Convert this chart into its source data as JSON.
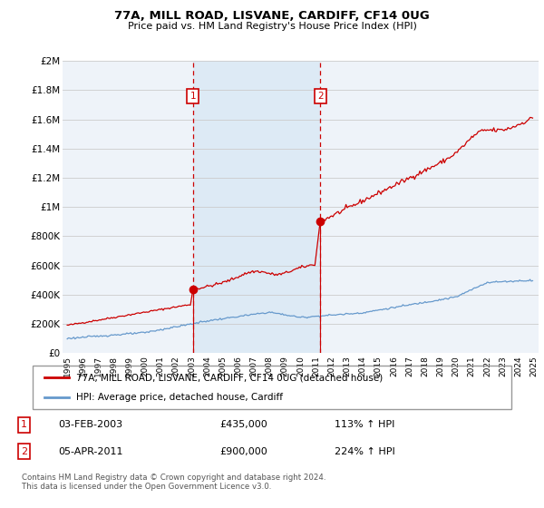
{
  "title": "77A, MILL ROAD, LISVANE, CARDIFF, CF14 0UG",
  "subtitle": "Price paid vs. HM Land Registry's House Price Index (HPI)",
  "background_color": "#ffffff",
  "plot_bg_color": "#eef3f9",
  "highlight_color": "#ddeaf5",
  "grid_color": "#cccccc",
  "ylim": [
    0,
    2000000
  ],
  "yticks": [
    0,
    200000,
    400000,
    600000,
    800000,
    1000000,
    1200000,
    1400000,
    1600000,
    1800000,
    2000000
  ],
  "ytick_labels": [
    "£0",
    "£200K",
    "£400K",
    "£600K",
    "£800K",
    "£1M",
    "£1.2M",
    "£1.4M",
    "£1.6M",
    "£1.8M",
    "£2M"
  ],
  "xlim_start": 1994.7,
  "xlim_end": 2025.3,
  "red_line_color": "#cc0000",
  "blue_line_color": "#6699cc",
  "marker1_x": 2003.08,
  "marker1_y": 435000,
  "marker2_x": 2011.26,
  "marker2_y": 900000,
  "vline_color": "#cc0000",
  "vline_style": "--",
  "legend_label_red": "77A, MILL ROAD, LISVANE, CARDIFF, CF14 0UG (detached house)",
  "legend_label_blue": "HPI: Average price, detached house, Cardiff",
  "table_row1": [
    "1",
    "03-FEB-2003",
    "£435,000",
    "113% ↑ HPI"
  ],
  "table_row2": [
    "2",
    "05-APR-2011",
    "£900,000",
    "224% ↑ HPI"
  ],
  "footer": "Contains HM Land Registry data © Crown copyright and database right 2024.\nThis data is licensed under the Open Government Licence v3.0.",
  "red_x": [
    1995.0,
    1995.08,
    1995.17,
    1995.25,
    1995.33,
    1995.42,
    1995.5,
    1995.58,
    1995.67,
    1995.75,
    1995.83,
    1995.92,
    1996.0,
    1996.08,
    1996.17,
    1996.25,
    1996.33,
    1996.42,
    1996.5,
    1996.58,
    1996.67,
    1996.75,
    1996.83,
    1996.92,
    1997.0,
    1997.08,
    1997.17,
    1997.25,
    1997.33,
    1997.42,
    1997.5,
    1997.58,
    1997.67,
    1997.75,
    1997.83,
    1997.92,
    1998.0,
    1998.08,
    1998.17,
    1998.25,
    1998.33,
    1998.42,
    1998.5,
    1998.58,
    1998.67,
    1998.75,
    1998.83,
    1998.92,
    1999.0,
    1999.08,
    1999.17,
    1999.25,
    1999.33,
    1999.42,
    1999.5,
    1999.58,
    1999.67,
    1999.75,
    1999.83,
    1999.92,
    2000.0,
    2000.08,
    2000.17,
    2000.25,
    2000.33,
    2000.42,
    2000.5,
    2000.58,
    2000.67,
    2000.75,
    2000.83,
    2000.92,
    2001.0,
    2001.08,
    2001.17,
    2001.25,
    2001.33,
    2001.42,
    2001.5,
    2001.58,
    2001.67,
    2001.75,
    2001.83,
    2001.92,
    2002.0,
    2002.08,
    2002.17,
    2002.25,
    2002.33,
    2002.42,
    2002.5,
    2002.58,
    2002.67,
    2002.75,
    2002.83,
    2002.92,
    2003.08,
    2003.17,
    2003.25,
    2003.33,
    2003.42,
    2003.5,
    2003.58,
    2003.67,
    2003.75,
    2003.83,
    2003.92,
    2004.0,
    2004.08,
    2004.17,
    2004.25,
    2004.33,
    2004.42,
    2004.5,
    2004.58,
    2004.67,
    2004.75,
    2004.83,
    2004.92,
    2005.0,
    2005.08,
    2005.17,
    2005.25,
    2005.33,
    2005.42,
    2005.5,
    2005.58,
    2005.67,
    2005.75,
    2005.83,
    2005.92,
    2006.0,
    2006.08,
    2006.17,
    2006.25,
    2006.33,
    2006.42,
    2006.5,
    2006.58,
    2006.67,
    2006.75,
    2006.83,
    2006.92,
    2007.0,
    2007.08,
    2007.17,
    2007.25,
    2007.33,
    2007.42,
    2007.5,
    2007.58,
    2007.67,
    2007.75,
    2007.83,
    2007.92,
    2008.0,
    2008.08,
    2008.17,
    2008.25,
    2008.33,
    2008.42,
    2008.5,
    2008.58,
    2008.67,
    2008.75,
    2008.83,
    2008.92,
    2009.0,
    2009.08,
    2009.17,
    2009.25,
    2009.33,
    2009.42,
    2009.5,
    2009.58,
    2009.67,
    2009.75,
    2009.83,
    2009.92,
    2010.0,
    2010.08,
    2010.17,
    2010.25,
    2010.33,
    2010.42,
    2010.5,
    2010.58,
    2010.67,
    2010.75,
    2010.83,
    2010.92,
    2011.26,
    2011.33,
    2011.42,
    2011.5,
    2011.58,
    2011.67,
    2011.75,
    2011.83,
    2011.92,
    2012.0,
    2012.08,
    2012.17,
    2012.25,
    2012.33,
    2012.42,
    2012.5,
    2012.58,
    2012.67,
    2012.75,
    2012.83,
    2012.92,
    2013.0,
    2013.08,
    2013.17,
    2013.25,
    2013.33,
    2013.42,
    2013.5,
    2013.58,
    2013.67,
    2013.75,
    2013.83,
    2013.92,
    2014.0,
    2014.08,
    2014.17,
    2014.25,
    2014.33,
    2014.42,
    2014.5,
    2014.58,
    2014.67,
    2014.75,
    2014.83,
    2014.92,
    2015.0,
    2015.08,
    2015.17,
    2015.25,
    2015.33,
    2015.42,
    2015.5,
    2015.58,
    2015.67,
    2015.75,
    2015.83,
    2015.92,
    2016.0,
    2016.08,
    2016.17,
    2016.25,
    2016.33,
    2016.42,
    2016.5,
    2016.58,
    2016.67,
    2016.75,
    2016.83,
    2016.92,
    2017.0,
    2017.08,
    2017.17,
    2017.25,
    2017.33,
    2017.42,
    2017.5,
    2017.58,
    2017.67,
    2017.75,
    2017.83,
    2017.92,
    2018.0,
    2018.08,
    2018.17,
    2018.25,
    2018.33,
    2018.42,
    2018.5,
    2018.58,
    2018.67,
    2018.75,
    2018.83,
    2018.92,
    2019.0,
    2019.08,
    2019.17,
    2019.25,
    2019.33,
    2019.42,
    2019.5,
    2019.58,
    2019.67,
    2019.75,
    2019.83,
    2019.92,
    2020.0,
    2020.08,
    2020.17,
    2020.25,
    2020.33,
    2020.42,
    2020.5,
    2020.58,
    2020.67,
    2020.75,
    2020.83,
    2020.92,
    2021.0,
    2021.08,
    2021.17,
    2021.25,
    2021.33,
    2021.42,
    2021.5,
    2021.58,
    2021.67,
    2021.75,
    2021.83,
    2021.92,
    2022.0,
    2022.08,
    2022.17,
    2022.25,
    2022.33,
    2022.42,
    2022.5,
    2022.58,
    2022.67,
    2022.75,
    2022.83,
    2022.92,
    2023.0,
    2023.08,
    2023.17,
    2023.25,
    2023.33,
    2023.42,
    2023.5,
    2023.58,
    2023.67,
    2023.75,
    2023.83,
    2023.92,
    2024.0,
    2024.08,
    2024.17,
    2024.25,
    2024.33,
    2024.42,
    2024.5,
    2024.58,
    2024.67,
    2024.75,
    2024.83,
    2024.92
  ],
  "blue_x": [
    1995.0,
    1995.08,
    1995.17,
    1995.25,
    1995.33,
    1995.42,
    1995.5,
    1995.58,
    1995.67,
    1995.75,
    1995.83,
    1995.92,
    1996.0,
    1996.08,
    1996.17,
    1996.25,
    1996.33,
    1996.42,
    1996.5,
    1996.58,
    1996.67,
    1996.75,
    1996.83,
    1996.92,
    1997.0,
    1997.08,
    1997.17,
    1997.25,
    1997.33,
    1997.42,
    1997.5,
    1997.58,
    1997.67,
    1997.75,
    1997.83,
    1997.92,
    1998.0,
    1998.08,
    1998.17,
    1998.25,
    1998.33,
    1998.42,
    1998.5,
    1998.58,
    1998.67,
    1998.75,
    1998.83,
    1998.92,
    1999.0,
    1999.08,
    1999.17,
    1999.25,
    1999.33,
    1999.42,
    1999.5,
    1999.58,
    1999.67,
    1999.75,
    1999.83,
    1999.92,
    2000.0,
    2000.08,
    2000.17,
    2000.25,
    2000.33,
    2000.42,
    2000.5,
    2000.58,
    2000.67,
    2000.75,
    2000.83,
    2000.92,
    2001.0,
    2001.08,
    2001.17,
    2001.25,
    2001.33,
    2001.42,
    2001.5,
    2001.58,
    2001.67,
    2001.75,
    2001.83,
    2001.92,
    2002.0,
    2002.08,
    2002.17,
    2002.25,
    2002.33,
    2002.42,
    2002.5,
    2002.58,
    2002.67,
    2002.75,
    2002.83,
    2002.92,
    2003.0,
    2003.08,
    2003.17,
    2003.25,
    2003.33,
    2003.42,
    2003.5,
    2003.58,
    2003.67,
    2003.75,
    2003.83,
    2003.92,
    2004.0,
    2004.08,
    2004.17,
    2004.25,
    2004.33,
    2004.42,
    2004.5,
    2004.58,
    2004.67,
    2004.75,
    2004.83,
    2004.92,
    2005.0,
    2005.08,
    2005.17,
    2005.25,
    2005.33,
    2005.42,
    2005.5,
    2005.58,
    2005.67,
    2005.75,
    2005.83,
    2005.92,
    2006.0,
    2006.08,
    2006.17,
    2006.25,
    2006.33,
    2006.42,
    2006.5,
    2006.58,
    2006.67,
    2006.75,
    2006.83,
    2006.92,
    2007.0,
    2007.08,
    2007.17,
    2007.25,
    2007.33,
    2007.42,
    2007.5,
    2007.58,
    2007.67,
    2007.75,
    2007.83,
    2007.92,
    2008.0,
    2008.08,
    2008.17,
    2008.25,
    2008.33,
    2008.42,
    2008.5,
    2008.58,
    2008.67,
    2008.75,
    2008.83,
    2008.92,
    2009.0,
    2009.08,
    2009.17,
    2009.25,
    2009.33,
    2009.42,
    2009.5,
    2009.58,
    2009.67,
    2009.75,
    2009.83,
    2009.92,
    2010.0,
    2010.08,
    2010.17,
    2010.25,
    2010.33,
    2010.42,
    2010.5,
    2010.58,
    2010.67,
    2010.75,
    2010.83,
    2010.92,
    2011.0,
    2011.08,
    2011.17,
    2011.25,
    2011.33,
    2011.42,
    2011.5,
    2011.58,
    2011.67,
    2011.75,
    2011.83,
    2011.92,
    2012.0,
    2012.08,
    2012.17,
    2012.25,
    2012.33,
    2012.42,
    2012.5,
    2012.58,
    2012.67,
    2012.75,
    2012.83,
    2012.92,
    2013.0,
    2013.08,
    2013.17,
    2013.25,
    2013.33,
    2013.42,
    2013.5,
    2013.58,
    2013.67,
    2013.75,
    2013.83,
    2013.92,
    2014.0,
    2014.08,
    2014.17,
    2014.25,
    2014.33,
    2014.42,
    2014.5,
    2014.58,
    2014.67,
    2014.75,
    2014.83,
    2014.92,
    2015.0,
    2015.08,
    2015.17,
    2015.25,
    2015.33,
    2015.42,
    2015.5,
    2015.58,
    2015.67,
    2015.75,
    2015.83,
    2015.92,
    2016.0,
    2016.08,
    2016.17,
    2016.25,
    2016.33,
    2016.42,
    2016.5,
    2016.58,
    2016.67,
    2016.75,
    2016.83,
    2016.92,
    2017.0,
    2017.08,
    2017.17,
    2017.25,
    2017.33,
    2017.42,
    2017.5,
    2017.58,
    2017.67,
    2017.75,
    2017.83,
    2017.92,
    2018.0,
    2018.08,
    2018.17,
    2018.25,
    2018.33,
    2018.42,
    2018.5,
    2018.58,
    2018.67,
    2018.75,
    2018.83,
    2018.92,
    2019.0,
    2019.08,
    2019.17,
    2019.25,
    2019.33,
    2019.42,
    2019.5,
    2019.58,
    2019.67,
    2019.75,
    2019.83,
    2019.92,
    2020.0,
    2020.08,
    2020.17,
    2020.25,
    2020.33,
    2020.42,
    2020.5,
    2020.58,
    2020.67,
    2020.75,
    2020.83,
    2020.92,
    2021.0,
    2021.08,
    2021.17,
    2021.25,
    2021.33,
    2021.42,
    2021.5,
    2021.58,
    2021.67,
    2021.75,
    2021.83,
    2021.92,
    2022.0,
    2022.08,
    2022.17,
    2022.25,
    2022.33,
    2022.42,
    2022.5,
    2022.58,
    2022.67,
    2022.75,
    2022.83,
    2022.92,
    2023.0,
    2023.08,
    2023.17,
    2023.25,
    2023.33,
    2023.42,
    2023.5,
    2023.58,
    2023.67,
    2023.75,
    2023.83,
    2023.92,
    2024.0,
    2024.08,
    2024.17,
    2024.25,
    2024.33,
    2024.42,
    2024.5,
    2024.58,
    2024.67,
    2024.75,
    2024.83,
    2024.92
  ]
}
